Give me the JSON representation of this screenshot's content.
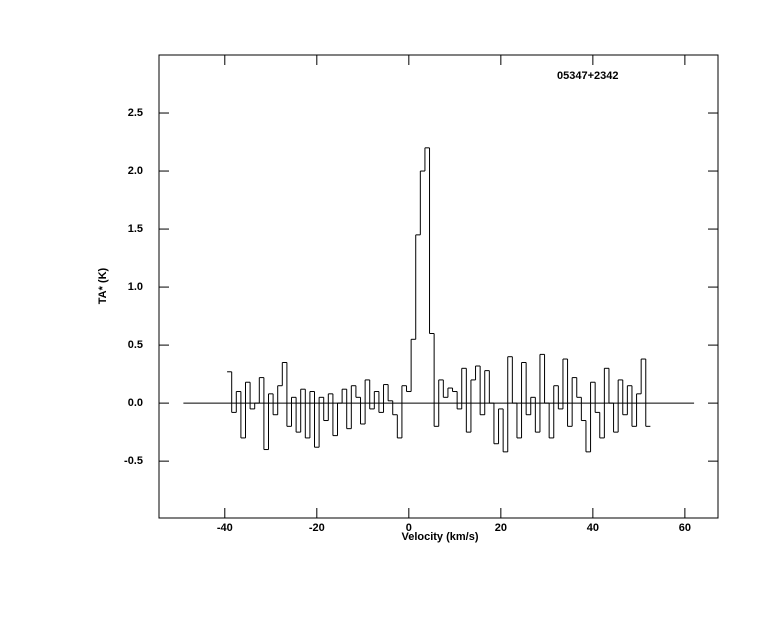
{
  "chart_data": {
    "type": "step",
    "annotation": "05347+2342",
    "xlabel": "Velocity (km/s)",
    "ylabel": "TA* (K)",
    "xlim": [
      -54.3,
      67.2
    ],
    "ylim": [
      -0.99,
      3.0
    ],
    "xticks": [
      -40,
      -20,
      0,
      20,
      40,
      60
    ],
    "yticks": [
      -0.5,
      {
        "value": 0,
        "label": "0.0"
      },
      0.5,
      {
        "value": 1,
        "label": "1.0"
      },
      1.5,
      {
        "value": 2,
        "label": "2.0"
      },
      2.5
    ],
    "baseline": {
      "x": [
        -49,
        62
      ],
      "y": 0
    },
    "color": "#000000",
    "x": [
      -39,
      -38,
      -37,
      -36,
      -35,
      -34,
      -33,
      -32,
      -31,
      -30,
      -29,
      -28,
      -27,
      -26,
      -25,
      -24,
      -23,
      -22,
      -21,
      -20,
      -19,
      -18,
      -17,
      -16,
      -15,
      -14,
      -13,
      -12,
      -11,
      -10,
      -9,
      -8,
      -7,
      -6,
      -5,
      -4,
      -3,
      -2,
      -1,
      0,
      1,
      2,
      3,
      4,
      5,
      6,
      7,
      8,
      9,
      10,
      11,
      12,
      13,
      14,
      15,
      16,
      17,
      18,
      19,
      20,
      21,
      22,
      23,
      24,
      25,
      26,
      27,
      28,
      29,
      30,
      31,
      32,
      33,
      34,
      35,
      36,
      37,
      38,
      39,
      40,
      41,
      42,
      43,
      44,
      45,
      46,
      47,
      48,
      49,
      50,
      51,
      52
    ],
    "values": [
      0.27,
      -0.08,
      0.1,
      -0.3,
      0.18,
      -0.05,
      0.0,
      0.22,
      -0.4,
      0.08,
      -0.1,
      0.15,
      0.35,
      -0.2,
      0.05,
      -0.25,
      0.12,
      -0.3,
      0.1,
      -0.38,
      0.05,
      -0.15,
      0.08,
      -0.28,
      0.0,
      0.12,
      -0.22,
      0.15,
      0.05,
      -0.18,
      0.2,
      -0.05,
      0.1,
      -0.08,
      0.16,
      0.02,
      -0.1,
      -0.3,
      0.15,
      0.1,
      0.55,
      1.45,
      2.0,
      2.2,
      0.6,
      -0.2,
      0.2,
      0.05,
      0.13,
      0.1,
      -0.05,
      0.3,
      -0.25,
      0.2,
      0.32,
      -0.1,
      0.28,
      0.0,
      -0.35,
      -0.05,
      -0.42,
      0.4,
      0.0,
      -0.3,
      0.35,
      -0.1,
      0.05,
      -0.25,
      0.42,
      0.0,
      -0.3,
      0.15,
      -0.05,
      0.38,
      -0.2,
      0.22,
      0.05,
      -0.15,
      -0.42,
      0.18,
      -0.08,
      -0.3,
      0.3,
      0.0,
      -0.25,
      0.2,
      -0.1,
      0.15,
      -0.2,
      0.08,
      0.38,
      -0.2
    ]
  }
}
